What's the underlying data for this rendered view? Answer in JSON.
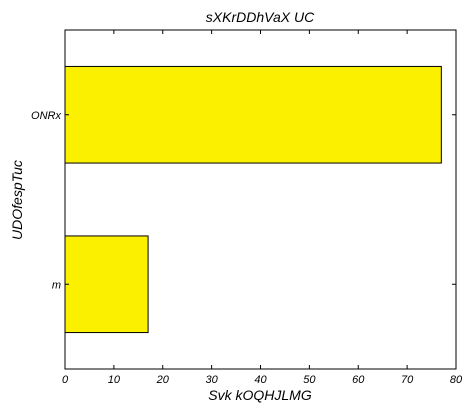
{
  "chart_data": {
    "type": "bar",
    "orientation": "horizontal",
    "title": "sXKrDDhVaX UC",
    "xlabel": "Svk kOQHJLMG",
    "ylabel": "UDOfespTuc",
    "categories": [
      "m",
      "ONRx"
    ],
    "values": [
      17,
      77
    ],
    "xlim": [
      0,
      80
    ],
    "xticks": [
      "0",
      "10",
      "20",
      "30",
      "40",
      "50",
      "60",
      "70",
      "80"
    ],
    "bar_color": "#fbf000",
    "grid": false,
    "legend": "none"
  }
}
